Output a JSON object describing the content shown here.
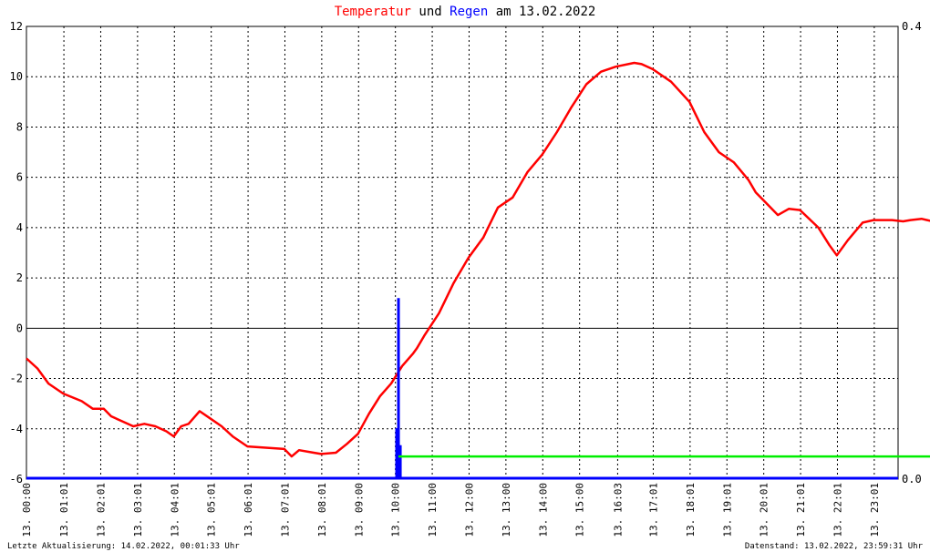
{
  "title": {
    "part1": "Temperatur",
    "part2": " und ",
    "part3": "Regen",
    "part4": " am 13.02.2022",
    "color1": "#ff0000",
    "color3": "#0000ff"
  },
  "footer_left": "Letzte Aktualisierung: 14.02.2022, 00:01:33 Uhr",
  "footer_right": "Datenstand: 13.02.2022, 23:59:31 Uhr",
  "chart_data": {
    "type": "line",
    "title": "Temperatur und Regen am 13.02.2022",
    "x_unit": "hours",
    "xlim": [
      0,
      24
    ],
    "ylim": [
      -6,
      12
    ],
    "yticks": [
      -6,
      -4,
      -2,
      0,
      2,
      4,
      6,
      8,
      10,
      12
    ],
    "y2lim": [
      0,
      0.4
    ],
    "y2ticks": [
      "0.0",
      "0.4"
    ],
    "x_tick_values": [
      0,
      1.0167,
      2.0167,
      3.0167,
      4.0167,
      5.0167,
      6.0167,
      7.0167,
      8.0167,
      9.0167,
      10.0167,
      11.0167,
      12.0167,
      13.0167,
      14.0167,
      15.0167,
      16.05,
      17.0167,
      18.0167,
      19.0167,
      20.0167,
      21.0167,
      22.0167,
      23.0167
    ],
    "x_tick_labels": [
      "13. 00:00",
      "13. 01:01",
      "13. 02:01",
      "13. 03:01",
      "13. 04:01",
      "13. 05:01",
      "13. 06:01",
      "13. 07:01",
      "13. 08:01",
      "13. 09:00",
      "13. 10:00",
      "13. 11:00",
      "13. 12:00",
      "13. 13:00",
      "13. 14:00",
      "13. 15:00",
      "13. 16:03",
      "13. 17:01",
      "13. 18:01",
      "13. 19:01",
      "13. 20:01",
      "13. 21:01",
      "13. 22:01",
      "13. 23:01"
    ],
    "grid": true,
    "series": [
      {
        "name": "Temperatur",
        "color": "#ff0000",
        "axis": "left",
        "points": [
          [
            0,
            -1.2
          ],
          [
            0.3,
            -1.6
          ],
          [
            0.6,
            -2.2
          ],
          [
            1.0,
            -2.6
          ],
          [
            1.5,
            -2.9
          ],
          [
            1.8,
            -3.2
          ],
          [
            2.1,
            -3.2
          ],
          [
            2.3,
            -3.5
          ],
          [
            2.6,
            -3.7
          ],
          [
            2.9,
            -3.9
          ],
          [
            3.2,
            -3.8
          ],
          [
            3.5,
            -3.9
          ],
          [
            3.8,
            -4.1
          ],
          [
            4.0,
            -4.3
          ],
          [
            4.2,
            -3.9
          ],
          [
            4.4,
            -3.8
          ],
          [
            4.7,
            -3.3
          ],
          [
            5.0,
            -3.6
          ],
          [
            5.3,
            -3.9
          ],
          [
            5.6,
            -4.3
          ],
          [
            6.0,
            -4.7
          ],
          [
            6.5,
            -4.75
          ],
          [
            7.0,
            -4.8
          ],
          [
            7.2,
            -5.1
          ],
          [
            7.4,
            -4.85
          ],
          [
            7.8,
            -4.95
          ],
          [
            8.0,
            -5.0
          ],
          [
            8.4,
            -4.95
          ],
          [
            8.7,
            -4.6
          ],
          [
            9.0,
            -4.2
          ],
          [
            9.3,
            -3.4
          ],
          [
            9.6,
            -2.7
          ],
          [
            9.9,
            -2.2
          ],
          [
            10.2,
            -1.5
          ],
          [
            10.5,
            -1.0
          ],
          [
            10.6,
            -0.8
          ],
          [
            10.8,
            -0.3
          ],
          [
            11.2,
            0.6
          ],
          [
            11.6,
            1.8
          ],
          [
            12.0,
            2.8
          ],
          [
            12.4,
            3.6
          ],
          [
            12.8,
            4.8
          ],
          [
            13.2,
            5.2
          ],
          [
            13.6,
            6.2
          ],
          [
            14.0,
            6.9
          ],
          [
            14.4,
            7.8
          ],
          [
            14.8,
            8.8
          ],
          [
            15.2,
            9.7
          ],
          [
            15.6,
            10.2
          ],
          [
            16.0,
            10.4
          ],
          [
            16.5,
            10.55
          ],
          [
            16.7,
            10.5
          ],
          [
            17.0,
            10.3
          ],
          [
            17.5,
            9.8
          ],
          [
            18.0,
            9.0
          ],
          [
            18.4,
            7.8
          ],
          [
            18.8,
            7.0
          ],
          [
            19.2,
            6.6
          ],
          [
            19.6,
            5.9
          ],
          [
            19.8,
            5.4
          ],
          [
            20.0,
            5.1
          ],
          [
            20.4,
            4.5
          ],
          [
            20.7,
            4.75
          ],
          [
            21.0,
            4.7
          ],
          [
            21.5,
            4.0
          ],
          [
            21.8,
            3.3
          ],
          [
            22.0,
            2.9
          ],
          [
            22.3,
            3.5
          ],
          [
            22.7,
            4.2
          ],
          [
            23.0,
            4.3
          ],
          [
            23.5,
            4.3
          ],
          [
            23.8,
            4.25
          ],
          [
            24.0,
            4.3
          ],
          [
            24.3,
            4.35
          ],
          [
            24.6,
            4.25
          ],
          [
            24.9,
            4.15
          ],
          [
            25.0,
            3.9
          ]
        ]
      },
      {
        "name": "Regen",
        "color": "#0000ff",
        "axis": "right",
        "bars": [
          [
            10.0,
            0.0
          ],
          [
            10.05,
            0.045
          ],
          [
            10.1,
            0.16
          ],
          [
            10.15,
            0.03
          ]
        ],
        "baseline": 0.0
      },
      {
        "name": "",
        "color": "#00ee00",
        "axis": "left",
        "points": [
          [
            10.1,
            -5.1
          ],
          [
            25.0,
            -5.1
          ]
        ]
      }
    ]
  }
}
